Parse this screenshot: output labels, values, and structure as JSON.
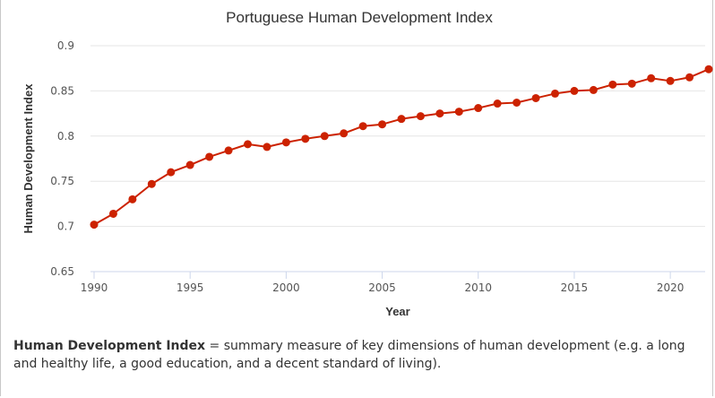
{
  "chart_data": {
    "type": "line",
    "title": "Portuguese Human Development Index",
    "xlabel": "Year",
    "ylabel": "Human Development Index",
    "xlim": [
      1990,
      2022
    ],
    "ylim": [
      0.65,
      0.9
    ],
    "x_ticks": [
      "1990",
      "1995",
      "2000",
      "2005",
      "2010",
      "2015",
      "2020"
    ],
    "y_ticks": [
      "0.65",
      "0.7",
      "0.75",
      "0.8",
      "0.85",
      "0.9"
    ],
    "grid": true,
    "series": [
      {
        "color": "#cc2200",
        "x": [
          1990,
          1991,
          1992,
          1993,
          1994,
          1995,
          1996,
          1997,
          1998,
          1999,
          2000,
          2001,
          2002,
          2003,
          2004,
          2005,
          2006,
          2007,
          2008,
          2009,
          2010,
          2011,
          2012,
          2013,
          2014,
          2015,
          2016,
          2017,
          2018,
          2019,
          2020,
          2021,
          2022
        ],
        "values": [
          0.702,
          0.714,
          0.73,
          0.747,
          0.76,
          0.768,
          0.777,
          0.784,
          0.791,
          0.788,
          0.793,
          0.797,
          0.8,
          0.803,
          0.811,
          0.813,
          0.819,
          0.822,
          0.825,
          0.827,
          0.831,
          0.836,
          0.837,
          0.842,
          0.847,
          0.85,
          0.851,
          0.857,
          0.858,
          0.864,
          0.861,
          0.865,
          0.874
        ]
      }
    ]
  },
  "caption": {
    "term": "Human Development Index",
    "definition": " = summary measure of key dimensions of human development (e.g. a long and healthy life, a good education, and a decent standard of living)."
  }
}
